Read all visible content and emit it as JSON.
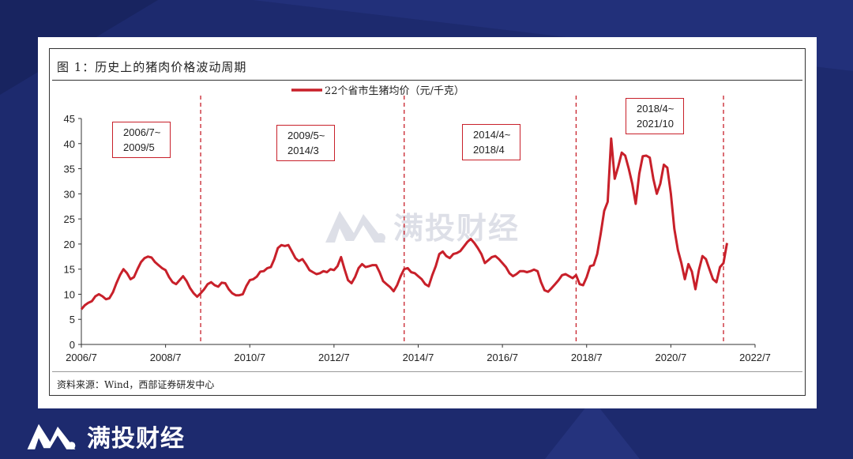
{
  "figure": {
    "title": "图 1：历史上的猪肉价格波动周期",
    "source": "资料来源：Wind，西部证券研发中心"
  },
  "branding": {
    "logo_text": "满投财经",
    "watermark_text": "满投财经"
  },
  "colors": {
    "series": "#c8202a",
    "background": "#1d2a6e",
    "annotation_border": "#c8202a"
  },
  "annotations": [
    {
      "line1": "2006/7~",
      "line2": "2009/5"
    },
    {
      "line1": "2009/5~",
      "line2": "2014/3"
    },
    {
      "line1": "2014/4~",
      "line2": "2018/4"
    },
    {
      "line1": "2018/4~",
      "line2": "2021/10"
    }
  ],
  "chart_data": {
    "type": "line",
    "title": "",
    "xlabel": "",
    "ylabel": "",
    "legend_position": "top-center",
    "grid": false,
    "ylim": [
      0,
      45
    ],
    "yticks": [
      0,
      5,
      10,
      15,
      20,
      25,
      30,
      35,
      40,
      45
    ],
    "xlim": [
      "2006/7",
      "2022/7"
    ],
    "xticks": [
      "2006/7",
      "2008/7",
      "2010/7",
      "2012/7",
      "2014/7",
      "2016/7",
      "2018/7",
      "2020/7",
      "2022/7"
    ],
    "cycle_boundaries": [
      "2009/5",
      "2014/3",
      "2018/4",
      "2021/10"
    ],
    "series": [
      {
        "name": "22个省市生猪均价（元/千克）",
        "start": "2006/7",
        "frequency": "monthly",
        "values": [
          7.0,
          7.8,
          8.3,
          8.6,
          9.6,
          10.0,
          9.6,
          9.0,
          9.2,
          10.4,
          12.2,
          13.8,
          15.0,
          14.2,
          13.0,
          13.4,
          15.0,
          16.4,
          17.2,
          17.5,
          17.3,
          16.4,
          15.8,
          15.2,
          14.8,
          13.4,
          12.4,
          12.0,
          12.8,
          13.6,
          12.6,
          11.2,
          10.2,
          9.5,
          10.2,
          11.0,
          12.0,
          12.4,
          11.8,
          11.5,
          12.3,
          12.2,
          11.0,
          10.2,
          9.8,
          9.8,
          10.0,
          11.6,
          12.8,
          13.0,
          13.5,
          14.5,
          14.6,
          15.2,
          15.4,
          17.0,
          19.2,
          19.8,
          19.6,
          19.8,
          18.5,
          17.2,
          16.6,
          17.0,
          16.0,
          14.8,
          14.4,
          14.0,
          14.2,
          14.6,
          14.4,
          15.0,
          14.8,
          15.6,
          17.4,
          15.0,
          12.8,
          12.2,
          13.4,
          15.2,
          16.0,
          15.4,
          15.6,
          15.8,
          15.8,
          14.4,
          12.6,
          12.0,
          11.4,
          10.6,
          11.8,
          13.6,
          15.0,
          15.2,
          14.4,
          14.2,
          13.6,
          13.0,
          12.0,
          11.6,
          13.8,
          15.6,
          18.0,
          18.5,
          17.6,
          17.2,
          18.0,
          18.2,
          18.6,
          19.5,
          20.4,
          21.0,
          20.2,
          19.2,
          18.0,
          16.2,
          16.8,
          17.4,
          17.6,
          17.0,
          16.2,
          15.4,
          14.2,
          13.6,
          14.0,
          14.6,
          14.6,
          14.4,
          14.6,
          14.9,
          14.6,
          12.4,
          10.8,
          10.5,
          11.2,
          12.0,
          12.8,
          13.8,
          14.0,
          13.6,
          13.2,
          13.8,
          12.0,
          11.8,
          13.4,
          15.6,
          15.8,
          18.0,
          22.0,
          26.6,
          28.4,
          41.0,
          33.0,
          35.4,
          38.2,
          37.6,
          35.0,
          32.0,
          28.0,
          34.0,
          37.5,
          37.6,
          37.2,
          33.0,
          30.0,
          32.0,
          35.8,
          35.2,
          30.0,
          23.0,
          18.8,
          16.2,
          13.0,
          16.0,
          14.5,
          11.0,
          14.8,
          17.6,
          17.0,
          15.0,
          13.0,
          12.4,
          15.4,
          16.2,
          20.2
        ]
      }
    ]
  }
}
